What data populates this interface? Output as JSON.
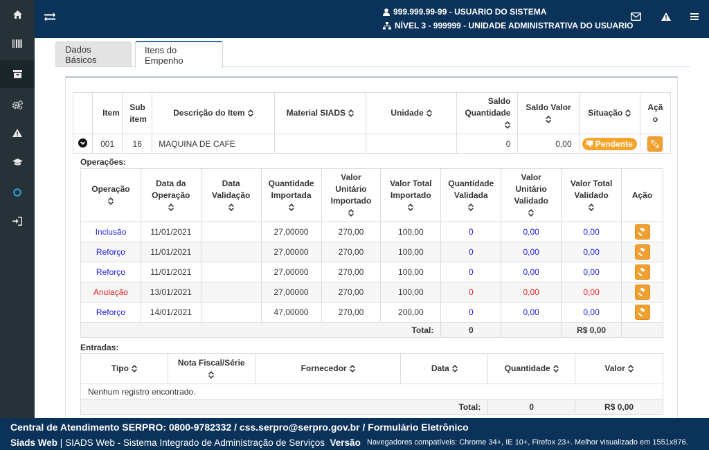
{
  "sidebar": {
    "items": [
      {
        "icon": "home-icon"
      },
      {
        "icon": "barcode-icon"
      },
      {
        "icon": "archive-icon"
      },
      {
        "icon": "cogs-icon"
      },
      {
        "icon": "warning-icon"
      },
      {
        "icon": "graduation-cap-icon"
      },
      {
        "icon": "circle-icon"
      },
      {
        "icon": "sign-in-icon"
      }
    ]
  },
  "header": {
    "user_line": "999.999.99-99 - USUARIO DO SISTEMA",
    "level_line": "NÍVEL 3 - 999999 - UNIDADE ADMINISTRATIVA DO USUARIO"
  },
  "tabs": [
    {
      "label": "Dados Básicos"
    },
    {
      "label": "Itens do Empenho"
    }
  ],
  "items_table": {
    "headers": {
      "item": "Item",
      "subitem": "Sub item",
      "descricao": "Descrição do Item",
      "material": "Material SIADS",
      "unidade": "Unidade",
      "saldo_qtd": "Saldo Quantidade",
      "saldo_valor": "Saldo Valor",
      "situacao": "Situação",
      "acao": "Ação"
    },
    "row": {
      "item": "001",
      "subitem": "16",
      "descricao": "MAQUINA DE CAFE",
      "material": "",
      "unidade": "",
      "saldo_qtd": "0",
      "saldo_valor": "0,00",
      "situacao": "Pendente"
    }
  },
  "operacoes": {
    "caption": "Operações:",
    "headers": {
      "operacao": "Operação",
      "data_op": "Data da Operação",
      "data_val": "Data Validação",
      "qtd_imp": "Quantidade Importada",
      "vu_imp": "Valor Unitário Importado",
      "vt_imp": "Valor Total Importado",
      "qtd_val": "Quantidade Validada",
      "vu_val": "Valor Unitário Validado",
      "vt_val": "Valor Total Validado",
      "acao": "Ação"
    },
    "rows": [
      {
        "operacao": "Inclusão",
        "data_op": "11/01/2021",
        "data_val": "",
        "qtd_imp": "27,00000",
        "vu_imp": "270,00",
        "vt_imp": "100,00",
        "qtd_val": "0",
        "vu_val": "0,00",
        "vt_val": "0,00",
        "color": "#1a1adb"
      },
      {
        "operacao": "Reforço",
        "data_op": "11/01/2021",
        "data_val": "",
        "qtd_imp": "27,00000",
        "vu_imp": "270,00",
        "vt_imp": "100,00",
        "qtd_val": "0",
        "vu_val": "0,00",
        "vt_val": "0,00",
        "color": "#1a1adb"
      },
      {
        "operacao": "Reforço",
        "data_op": "11/01/2021",
        "data_val": "",
        "qtd_imp": "27,00000",
        "vu_imp": "270,00",
        "vt_imp": "100,00",
        "qtd_val": "0",
        "vu_val": "0,00",
        "vt_val": "0,00",
        "color": "#1a1adb"
      },
      {
        "operacao": "Anulação",
        "data_op": "13/01/2021",
        "data_val": "",
        "qtd_imp": "27,00000",
        "vu_imp": "270,00",
        "vt_imp": "100,00",
        "qtd_val": "0",
        "vu_val": "0,00",
        "vt_val": "0,00",
        "color": "#e02020"
      },
      {
        "operacao": "Reforço",
        "data_op": "14/01/2021",
        "data_val": "",
        "qtd_imp": "47,00000",
        "vu_imp": "270,00",
        "vt_imp": "200,00",
        "qtd_val": "0",
        "vu_val": "0,00",
        "vt_val": "0,00",
        "color": "#1a1adb"
      }
    ],
    "total_label": "Total:",
    "total_qtd": "0",
    "total_valor": "R$ 0,00"
  },
  "entradas": {
    "caption": "Entradas:",
    "headers": {
      "tipo": "Tipo",
      "nota": "Nota Fiscal/Série",
      "fornecedor": "Fornecedor",
      "data": "Data",
      "quantidade": "Quantidade",
      "valor": "Valor"
    },
    "empty": "Nenhum registro encontrado.",
    "total_label": "Total:",
    "total_qtd": "0",
    "total_valor": "R$ 0,00"
  },
  "footer": {
    "line1": "Central de Atendimento SERPRO: 0800-9782332 / css.serpro@serpro.gov.br / Formulário Eletrônico",
    "app_name": "Siads Web",
    "sep": "|",
    "app_full": "SIADS Web - Sistema Integrado de Administração de Serviços",
    "versao": "Versão",
    "browsers": "Navegadores compatíveis: Chrome 34+, IE 10+, Firefox 23+. Melhor visualizado em 1551x876."
  }
}
